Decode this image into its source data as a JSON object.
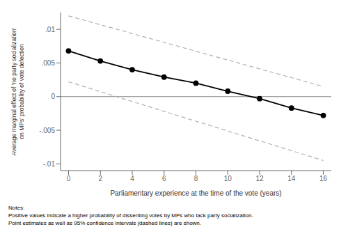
{
  "chart_data": {
    "type": "line",
    "x": [
      0,
      2,
      4,
      6,
      8,
      10,
      12,
      14,
      16
    ],
    "series": [
      {
        "values": [
          0.0068,
          0.0053,
          0.004,
          0.0029,
          0.002,
          0.0008,
          -0.0003,
          -0.0017,
          -0.0028
        ],
        "color": "#000000",
        "marker": "circle",
        "line_style": "solid"
      },
      {
        "x": [
          0,
          16
        ],
        "values": [
          0.012,
          0.0015
        ],
        "color": "#b0b0b0",
        "line_style": "dashed"
      },
      {
        "x": [
          0,
          16
        ],
        "values": [
          0.0022,
          -0.0095
        ],
        "color": "#b0b0b0",
        "line_style": "dashed"
      }
    ],
    "xlim": [
      -0.5,
      16.5
    ],
    "ylim": [
      -0.011,
      0.0125
    ],
    "xticks": [
      0,
      2,
      4,
      6,
      8,
      10,
      12,
      14,
      16
    ],
    "yticks": [
      {
        "value": -0.01,
        "label": "-.01"
      },
      {
        "value": -0.005,
        "label": "-.005"
      },
      0,
      {
        "value": 0.005,
        "label": ".005"
      },
      {
        "value": 0.01,
        "label": ".01"
      }
    ],
    "xlabel": "Parliamentary experience at the time of the vote (years)",
    "ylabel": "Average marginal effect of 'no party socialization'\non MPs' probability of vote defection",
    "hline": 0,
    "notes": [
      "Notes:",
      "Positive values indicate a higher probability of dissenting votes by MPs who lack party socialization.",
      "Point estimates as well as 95% confidence intervals (dashed lines) are shown."
    ],
    "grid": false
  }
}
